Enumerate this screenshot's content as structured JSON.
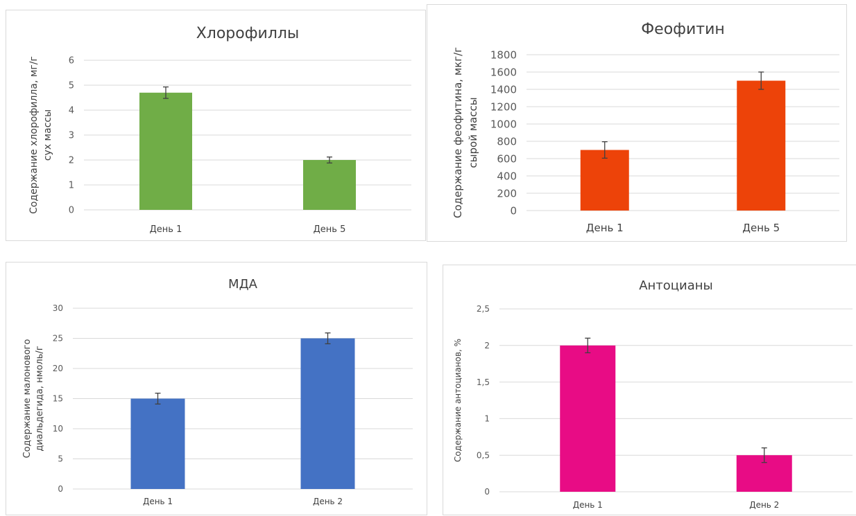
{
  "chart_data": [
    {
      "type": "bar",
      "title": "Хлорофиллы",
      "ylabel_lines": [
        "Содержание хлорофилла, мг/г",
        "сух массы"
      ],
      "xlabel": "",
      "categories": [
        "День 1",
        "День 5"
      ],
      "values": [
        4.7,
        2.0
      ],
      "errors": [
        0.23,
        0.12
      ],
      "ylim": [
        0,
        6
      ],
      "yticks": [
        "0",
        "1",
        "2",
        "3",
        "4",
        "5",
        "6"
      ],
      "color": "#70ad47",
      "grid": true,
      "legend": "none"
    },
    {
      "type": "bar",
      "title": "Феофитин",
      "ylabel_lines": [
        "Содержание феофитина, мкг/г",
        "сырой массы"
      ],
      "xlabel": "",
      "categories": [
        "День 1",
        "День 5"
      ],
      "values": [
        700,
        1500
      ],
      "errors": [
        95,
        100
      ],
      "ylim": [
        0,
        1800
      ],
      "yticks": [
        "0",
        "200",
        "400",
        "600",
        "800",
        "1000",
        "1200",
        "1400",
        "1600",
        "1800"
      ],
      "color": "#ed4309",
      "grid": true,
      "legend": "none"
    },
    {
      "type": "bar",
      "title": "МДА",
      "ylabel_lines": [
        "Содержание малонового",
        "диальдегида, нмоль/г"
      ],
      "xlabel": "",
      "categories": [
        "День 1",
        "День 2"
      ],
      "values": [
        15,
        25
      ],
      "errors": [
        0.9,
        0.9
      ],
      "ylim": [
        0,
        30
      ],
      "yticks": [
        "0",
        "5",
        "10",
        "15",
        "20",
        "25",
        "30"
      ],
      "color": "#4472c4",
      "grid": true,
      "legend": "none"
    },
    {
      "type": "bar",
      "title": "Антоцианы",
      "ylabel_lines": [
        "Содержание антоцианов, %"
      ],
      "xlabel": "",
      "categories": [
        "День 1",
        "День 2"
      ],
      "values": [
        2.0,
        0.5
      ],
      "errors": [
        0.1,
        0.1
      ],
      "ylim": [
        0,
        2.5
      ],
      "yticks": [
        "0",
        "0,5",
        "1",
        "1,5",
        "2",
        "2,5"
      ],
      "color": "#e80c85",
      "grid": true,
      "legend": "none"
    }
  ]
}
